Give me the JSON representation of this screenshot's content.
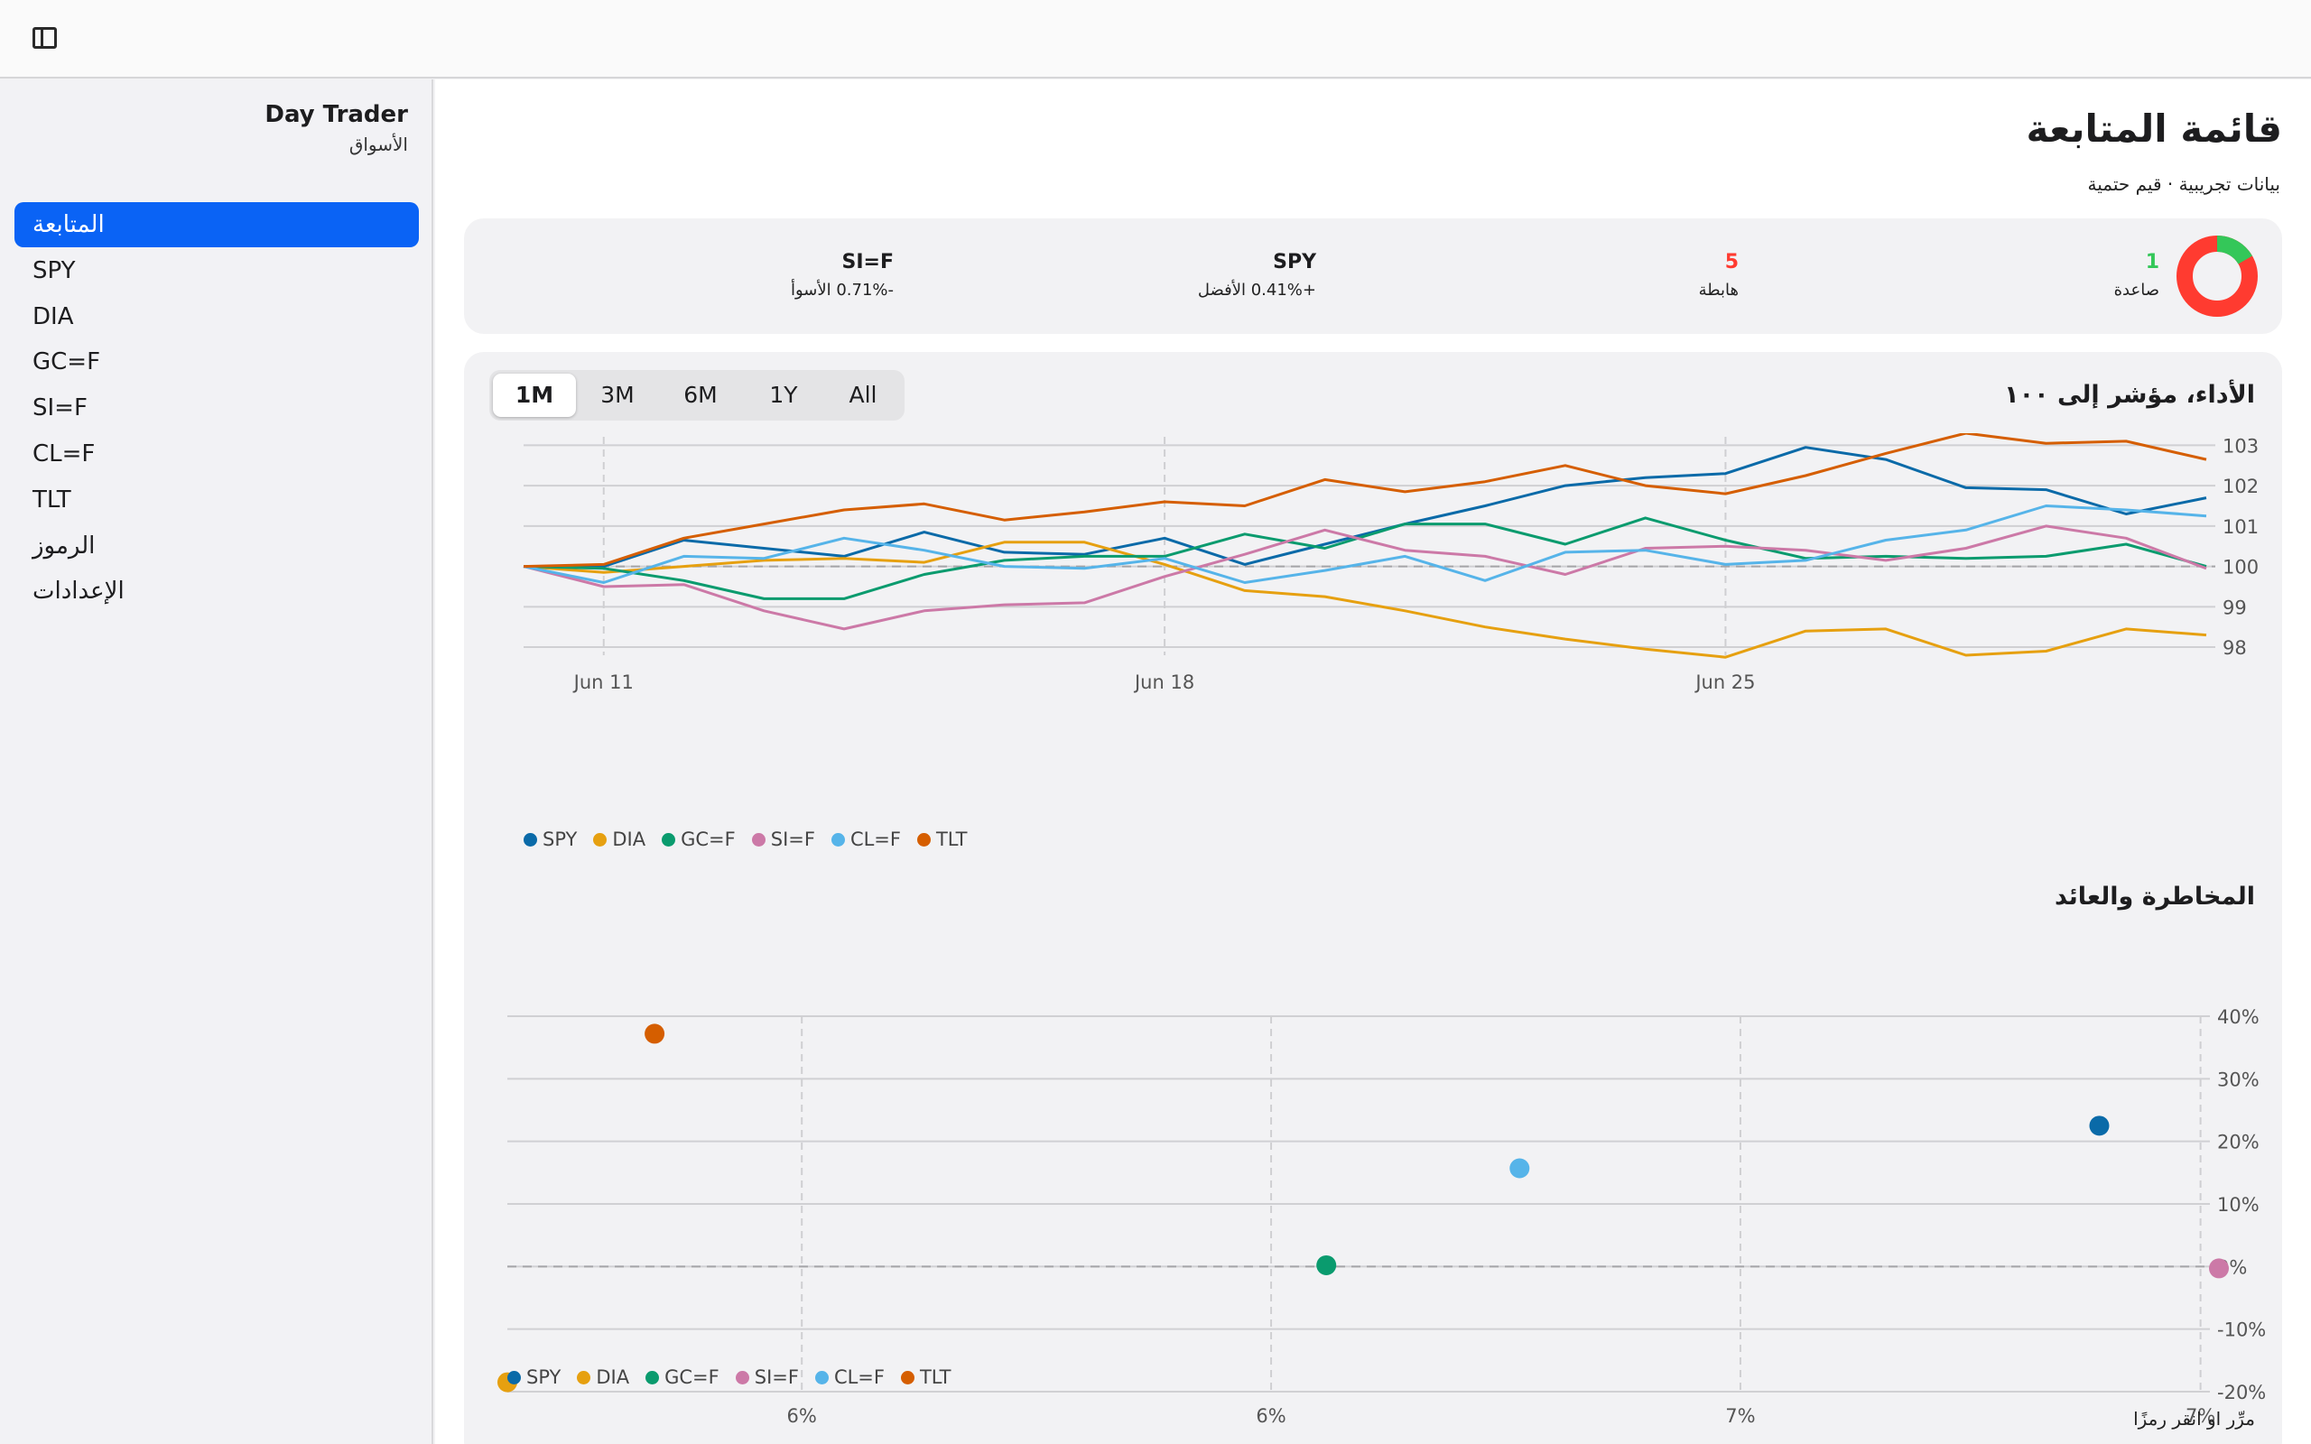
{
  "app": {
    "name": "Day Trader",
    "section": "الأسواق"
  },
  "sidebar": {
    "items": [
      {
        "label": "المتابعة",
        "active": true
      },
      {
        "label": "SPY"
      },
      {
        "label": "DIA"
      },
      {
        "label": "GC=F"
      },
      {
        "label": "SI=F"
      },
      {
        "label": "CL=F"
      },
      {
        "label": "TLT"
      },
      {
        "label": "الرموز"
      },
      {
        "label": "الإعدادات"
      }
    ]
  },
  "page": {
    "title": "قائمة المتابعة",
    "subtitle": "بيانات تجريبية · قيم حتمية"
  },
  "summary": {
    "up_count": "1",
    "up_label": "صاعدة",
    "down_count": "5",
    "down_label": "هابطة",
    "best_symbol": "SPY",
    "best_label": "+0.41% الأفضل",
    "worst_symbol": "SI=F",
    "worst_label": "-0.71% الأسوأ",
    "colors": {
      "up": "#34c759",
      "down": "#ff3b30"
    }
  },
  "range": {
    "options": [
      "1M",
      "3M",
      "6M",
      "1Y",
      "All"
    ],
    "selected": "1M"
  },
  "colors": {
    "SPY": "#0a6aa8",
    "DIA": "#e6a010",
    "GC=F": "#0a9b6e",
    "SI=F": "#cc79a7",
    "CL=F": "#56b4e9",
    "TLT": "#d55e00"
  },
  "chart_data": [
    {
      "type": "line",
      "title": "الأداء، مؤشر إلى ١٠٠",
      "x_ticks": [
        "Jun 11",
        "Jun 18",
        "Jun 25"
      ],
      "ylim": [
        97.8,
        103.3
      ],
      "y_ticks": [
        98,
        99,
        100,
        101,
        102,
        103
      ],
      "baseline": 100,
      "grid": true,
      "legend": "bottom-left",
      "series": [
        {
          "name": "SPY",
          "values": [
            100,
            100,
            100.65,
            100.45,
            100.25,
            100.85,
            100.35,
            100.3,
            100.7,
            100.05,
            100.55,
            101.05,
            101.5,
            102,
            102.2,
            102.3,
            102.95,
            102.65,
            101.95,
            101.9,
            101.3,
            101.7
          ]
        },
        {
          "name": "DIA",
          "values": [
            100,
            99.85,
            100,
            100.15,
            100.2,
            100.1,
            100.6,
            100.6,
            100.05,
            99.4,
            99.25,
            98.9,
            98.5,
            98.2,
            97.95,
            97.75,
            98.4,
            98.45,
            97.8,
            97.9,
            98.45,
            98.3
          ]
        },
        {
          "name": "GC=F",
          "values": [
            100,
            99.95,
            99.65,
            99.2,
            99.2,
            99.8,
            100.15,
            100.25,
            100.25,
            100.8,
            100.45,
            101.05,
            101.05,
            100.55,
            101.2,
            100.65,
            100.2,
            100.25,
            100.2,
            100.25,
            100.55,
            100
          ]
        },
        {
          "name": "SI=F",
          "values": [
            100,
            99.5,
            99.55,
            98.9,
            98.45,
            98.9,
            99.05,
            99.1,
            99.75,
            100.3,
            100.9,
            100.4,
            100.25,
            99.8,
            100.45,
            100.5,
            100.4,
            100.15,
            100.45,
            101,
            100.7,
            99.95
          ]
        },
        {
          "name": "CL=F",
          "values": [
            100,
            99.6,
            100.25,
            100.2,
            100.7,
            100.4,
            100,
            99.95,
            100.2,
            99.6,
            99.9,
            100.25,
            99.65,
            100.35,
            100.4,
            100.05,
            100.15,
            100.65,
            100.9,
            101.5,
            101.4,
            101.25
          ]
        },
        {
          "name": "TLT",
          "values": [
            100,
            100.05,
            100.7,
            101.05,
            101.4,
            101.55,
            101.15,
            101.35,
            101.6,
            101.5,
            102.15,
            101.85,
            102.1,
            102.5,
            102,
            101.8,
            102.25,
            102.8,
            103.3,
            103.05,
            103.1,
            102.65
          ]
        }
      ]
    },
    {
      "type": "scatter",
      "title": "المخاطرة والعائد",
      "x_ticks": [
        "6%",
        "6%",
        "7%",
        "7%"
      ],
      "xlim": [
        5.37,
        7.23
      ],
      "y_ticks": [
        "40%",
        "30%",
        "20%",
        "10%",
        "0%",
        "-10%",
        "-20%"
      ],
      "ylim": [
        -20,
        40
      ],
      "baseline": 0,
      "grid": true,
      "legend": "bottom-left",
      "points": [
        {
          "name": "SPY",
          "x": 7.1,
          "y": 22.5
        },
        {
          "name": "DIA",
          "x": 5.37,
          "y": -18.5
        },
        {
          "name": "GC=F",
          "x": 6.26,
          "y": 0.2
        },
        {
          "name": "SI=F",
          "x": 7.23,
          "y": -0.3
        },
        {
          "name": "CL=F",
          "x": 6.47,
          "y": 15.7
        },
        {
          "name": "TLT",
          "x": 5.53,
          "y": 37.2
        }
      ]
    }
  ],
  "hint": "مرِّر او انقر رمزًا"
}
